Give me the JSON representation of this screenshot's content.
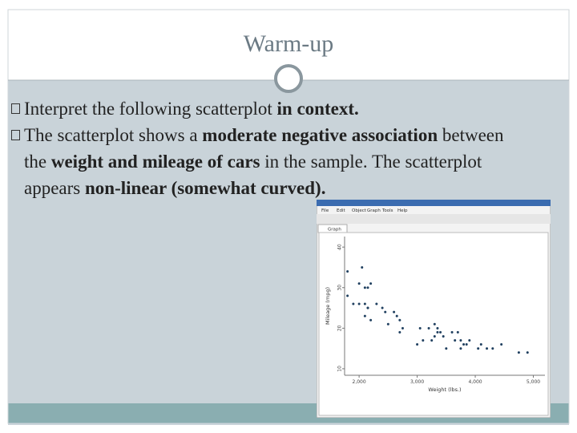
{
  "title": "Warm-up",
  "bullets": [
    [
      {
        "text": "Interpret the following scatterplot ",
        "bold": false
      },
      {
        "text": "in context.",
        "bold": true
      }
    ],
    [
      {
        "text": "The scatterplot shows a ",
        "bold": false
      },
      {
        "text": "moderate negative association",
        "bold": true
      },
      {
        "text": " between the ",
        "bold": false
      },
      {
        "text": "weight and mileage of cars",
        "bold": true
      },
      {
        "text": " in the sample. The scatterplot appears ",
        "bold": false
      },
      {
        "text": "non-linear (somewhat curved).",
        "bold": true
      }
    ]
  ],
  "screenshot": {
    "menu": [
      "File",
      "Edit",
      "Object",
      "Graph",
      "Tools",
      "Help"
    ],
    "tab": "Graph"
  },
  "chart_data": {
    "type": "scatter",
    "x_label": "Weight (lbs.)",
    "y_label": "Mileage (mpg)",
    "color": "#1f3f5f",
    "x": [
      1800,
      1800,
      2050,
      2000,
      2100,
      2150,
      2200,
      1900,
      2000,
      2100,
      2150,
      2300,
      2100,
      2200,
      2150,
      2400,
      2600,
      2650,
      2700,
      2500,
      2750,
      2700,
      3050,
      3200,
      3300,
      3350,
      3350,
      3300,
      3400,
      3250,
      3450,
      3600,
      3700,
      3650,
      3750,
      3850,
      3900,
      3750,
      3500,
      4100,
      4300,
      4050,
      4200,
      4450,
      4900,
      4750,
      2450,
      3100,
      3000,
      3800
    ],
    "y": [
      34,
      28,
      35,
      31,
      30,
      30,
      31,
      26,
      26,
      26,
      25,
      26,
      23,
      22,
      25,
      25,
      24,
      23,
      22,
      21,
      20,
      19,
      20,
      20,
      21,
      20,
      19,
      18,
      19,
      17,
      18,
      19,
      19,
      17,
      17,
      16,
      17,
      15,
      15,
      16,
      15,
      15,
      15,
      16,
      14,
      14,
      24,
      17,
      16,
      16
    ],
    "xlim": [
      1750,
      5200
    ],
    "ylim": [
      8.4,
      42.6
    ],
    "xticks": [
      {
        "value": 2000,
        "label": "2,000"
      },
      {
        "value": 3000,
        "label": "3,000"
      },
      {
        "value": 4000,
        "label": "4,000"
      },
      {
        "value": 5000,
        "label": "5,000"
      }
    ],
    "yticks": [
      10,
      20,
      30,
      40
    ]
  }
}
